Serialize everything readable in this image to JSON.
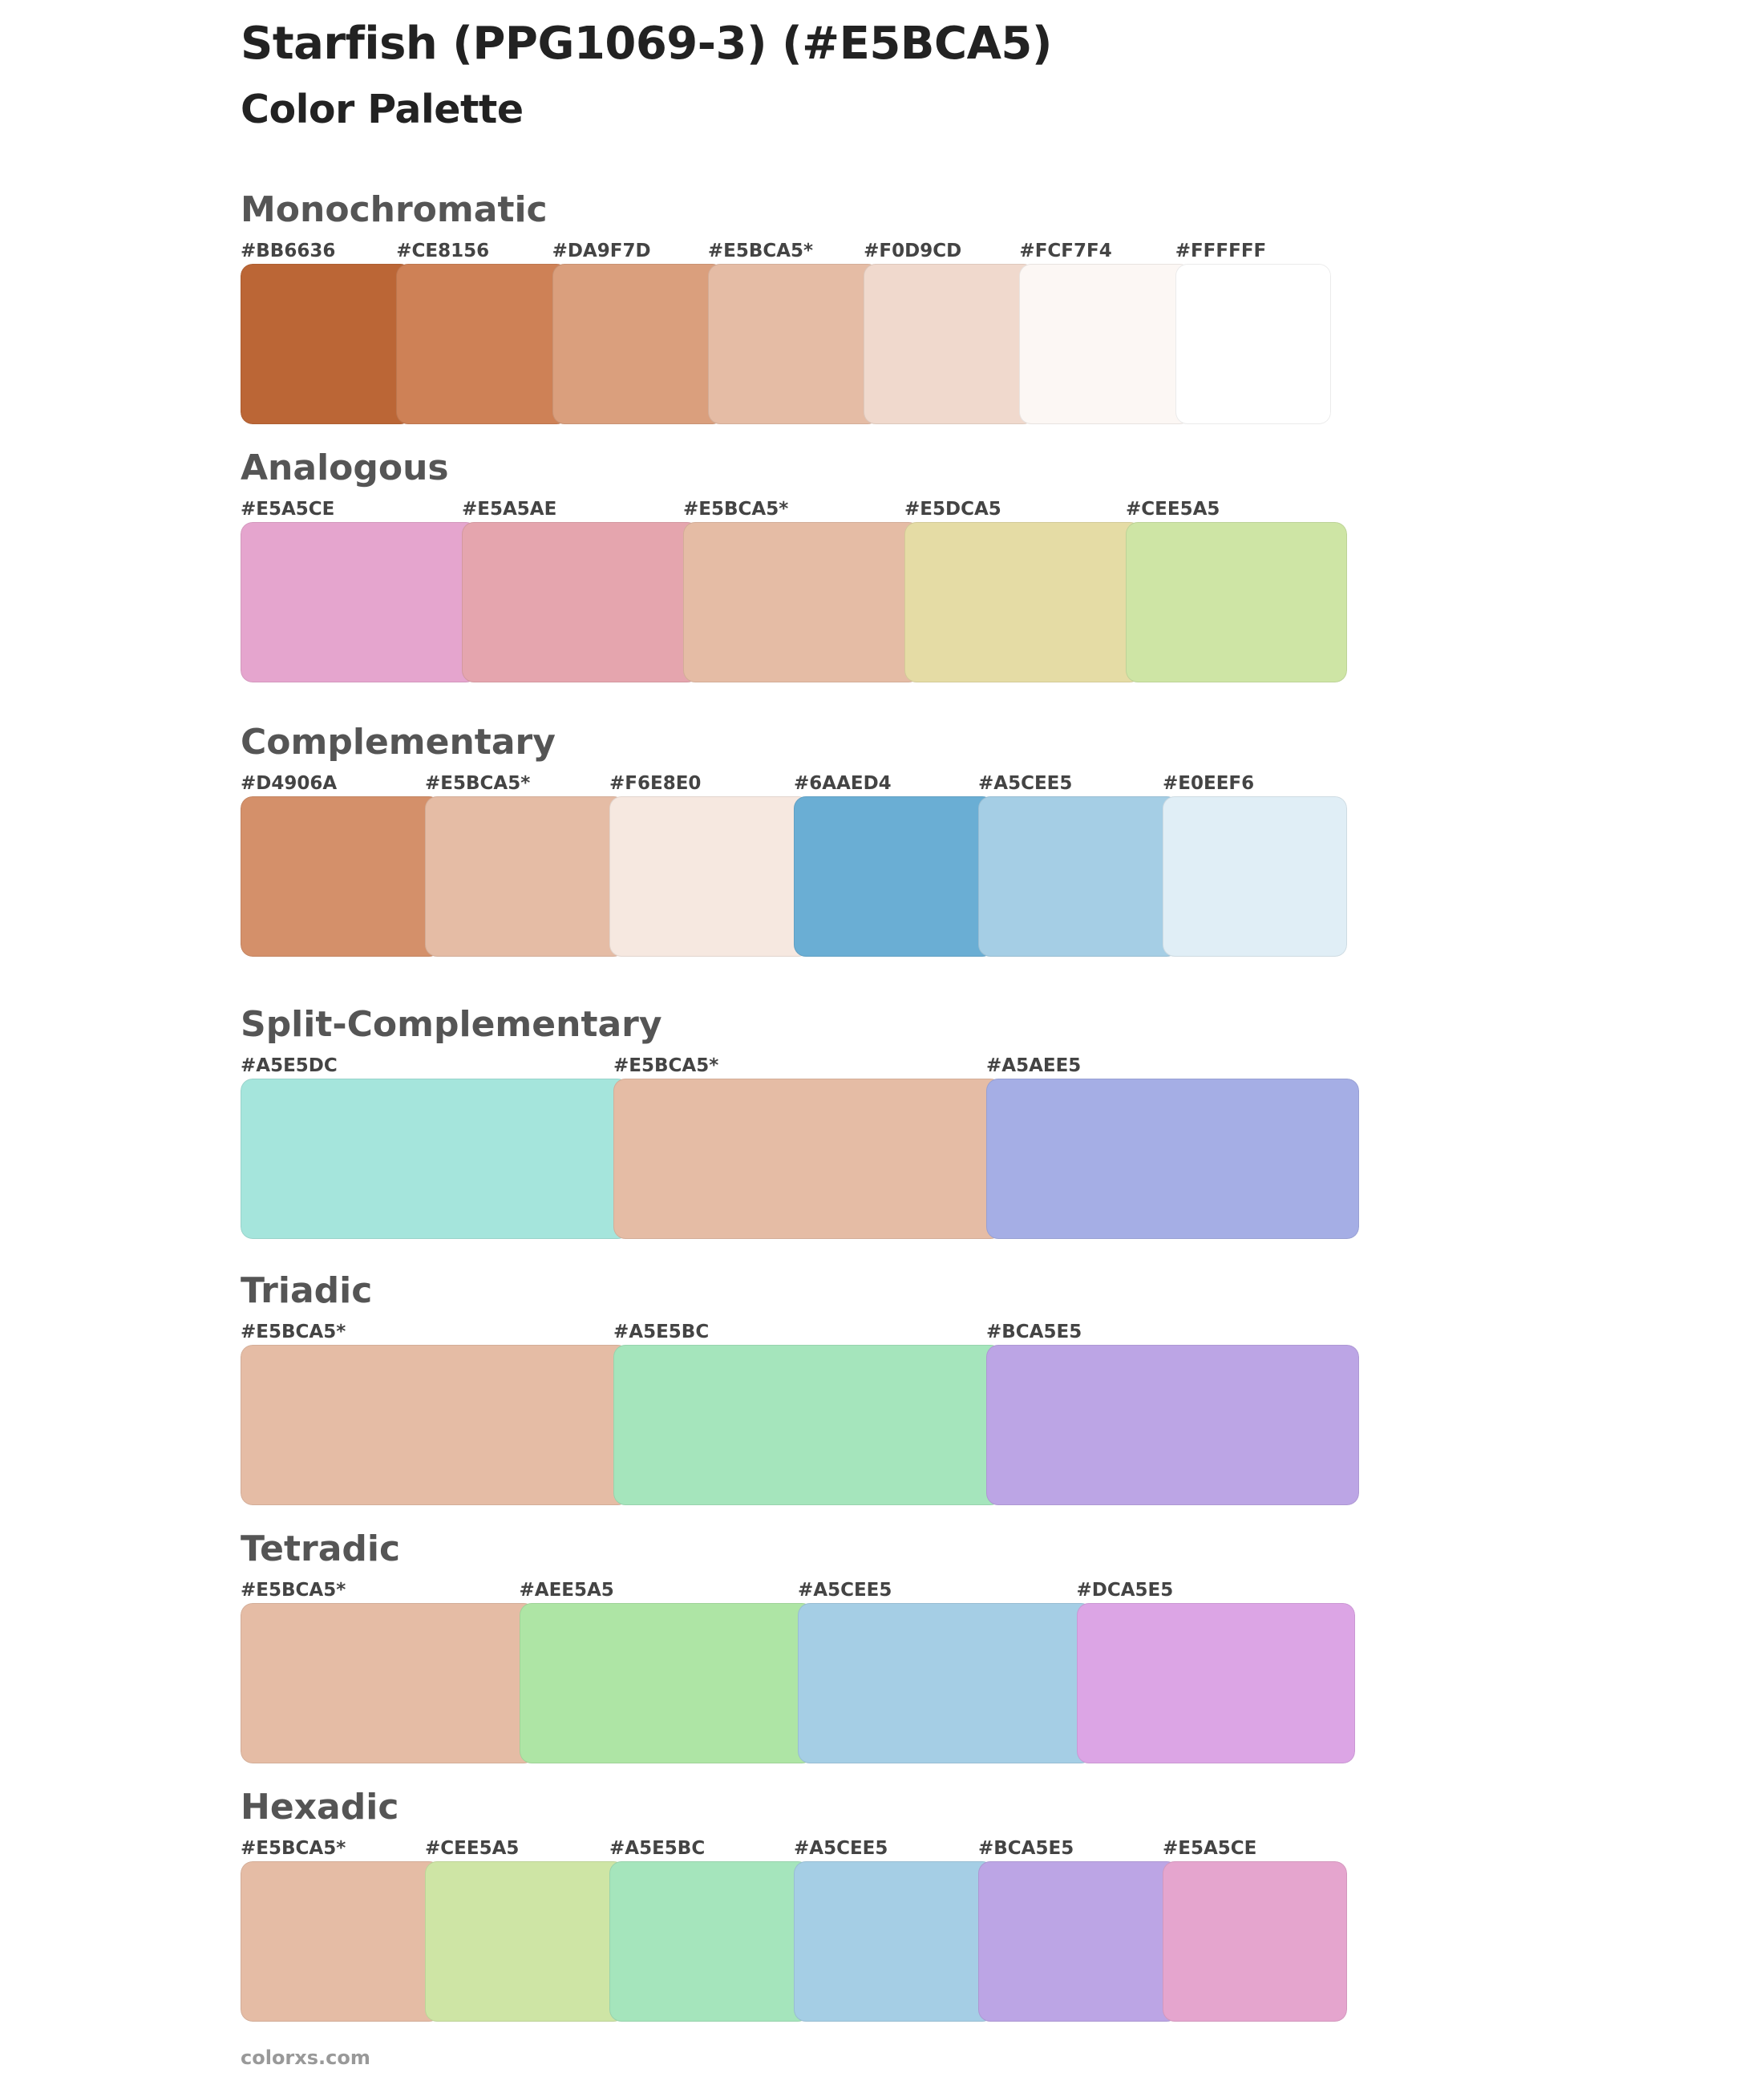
{
  "title": "Starfish (PPG1069-3) (#E5BCA5)",
  "subtitle": "Color Palette",
  "footer": "colorxs.com",
  "sections": [
    {
      "name": "Monochromatic",
      "colors": [
        {
          "label": "#BB6636",
          "hex": "#BB6636"
        },
        {
          "label": "#CE8156",
          "hex": "#CE8156"
        },
        {
          "label": "#DA9F7D",
          "hex": "#DA9F7D"
        },
        {
          "label": "#E5BCA5*",
          "hex": "#E5BCA5"
        },
        {
          "label": "#F0D9CD",
          "hex": "#F0D9CD"
        },
        {
          "label": "#FCF7F4",
          "hex": "#FCF7F4"
        },
        {
          "label": "#FFFFFF",
          "hex": "#FFFFFF"
        }
      ]
    },
    {
      "name": "Analogous",
      "colors": [
        {
          "label": "#E5A5CE",
          "hex": "#E5A5CE"
        },
        {
          "label": "#E5A5AE",
          "hex": "#E5A5AE"
        },
        {
          "label": "#E5BCA5*",
          "hex": "#E5BCA5"
        },
        {
          "label": "#E5DCA5",
          "hex": "#E5DCA5"
        },
        {
          "label": "#CEE5A5",
          "hex": "#CEE5A5"
        }
      ]
    },
    {
      "name": "Complementary",
      "colors": [
        {
          "label": "#D4906A",
          "hex": "#D4906A"
        },
        {
          "label": "#E5BCA5*",
          "hex": "#E5BCA5"
        },
        {
          "label": "#F6E8E0",
          "hex": "#F6E8E0"
        },
        {
          "label": "#6AAED4",
          "hex": "#6AAED4"
        },
        {
          "label": "#A5CEE5",
          "hex": "#A5CEE5"
        },
        {
          "label": "#E0EEF6",
          "hex": "#E0EEF6"
        }
      ]
    },
    {
      "name": "Split-Complementary",
      "colors": [
        {
          "label": "#A5E5DC",
          "hex": "#A5E5DC"
        },
        {
          "label": "#E5BCA5*",
          "hex": "#E5BCA5"
        },
        {
          "label": "#A5AEE5",
          "hex": "#A5AEE5"
        }
      ]
    },
    {
      "name": "Triadic",
      "colors": [
        {
          "label": "#E5BCA5*",
          "hex": "#E5BCA5"
        },
        {
          "label": "#A5E5BC",
          "hex": "#A5E5BC"
        },
        {
          "label": "#BCA5E5",
          "hex": "#BCA5E5"
        }
      ]
    },
    {
      "name": "Tetradic",
      "colors": [
        {
          "label": "#E5BCA5*",
          "hex": "#E5BCA5"
        },
        {
          "label": "#AEE5A5",
          "hex": "#AEE5A5"
        },
        {
          "label": "#A5CEE5",
          "hex": "#A5CEE5"
        },
        {
          "label": "#DCA5E5",
          "hex": "#DCA5E5"
        }
      ]
    },
    {
      "name": "Hexadic",
      "colors": [
        {
          "label": "#E5BCA5*",
          "hex": "#E5BCA5"
        },
        {
          "label": "#CEE5A5",
          "hex": "#CEE5A5"
        },
        {
          "label": "#A5E5BC",
          "hex": "#A5E5BC"
        },
        {
          "label": "#A5CEE5",
          "hex": "#A5CEE5"
        },
        {
          "label": "#BCA5E5",
          "hex": "#BCA5E5"
        },
        {
          "label": "#E5A5CE",
          "hex": "#E5A5CE"
        }
      ]
    }
  ]
}
